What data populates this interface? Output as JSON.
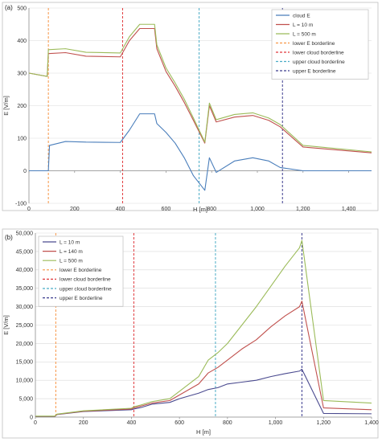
{
  "figure": {
    "panels": [
      "(a)",
      "(b)"
    ]
  },
  "chart_data": [
    {
      "type": "line",
      "panel": "(a)",
      "title": "",
      "xlabel": "H [m]",
      "ylabel": "E [V/m]",
      "xlim": [
        0,
        1500
      ],
      "ylim": [
        -100,
        500
      ],
      "xticks": [
        "0",
        "200",
        "400",
        "600",
        "800",
        "1,000",
        "1,200",
        "1,400"
      ],
      "xtick_values": [
        0,
        200,
        400,
        600,
        800,
        1000,
        1200,
        1400
      ],
      "yticks": [
        "-100",
        "0",
        "100",
        "200",
        "300",
        "400",
        "500"
      ],
      "ytick_values": [
        -100,
        0,
        100,
        200,
        300,
        400,
        500
      ],
      "grid": true,
      "legend": "top-right",
      "series": [
        {
          "name": "cloud E",
          "color": "#4a7ebb",
          "dash": "solid",
          "x": [
            0,
            85,
            90,
            160,
            250,
            400,
            440,
            485,
            550,
            560,
            600,
            640,
            680,
            720,
            770,
            790,
            820,
            900,
            980,
            1050,
            1100,
            1200,
            1500
          ],
          "y": [
            0,
            0,
            78,
            90,
            88,
            87,
            125,
            175,
            175,
            145,
            118,
            85,
            40,
            -15,
            -60,
            40,
            -5,
            30,
            40,
            30,
            10,
            0,
            0
          ]
        },
        {
          "name": "L = 10 m",
          "color": "#c0504d",
          "dash": "solid",
          "x": [
            0,
            80,
            85,
            160,
            250,
            400,
            440,
            485,
            550,
            560,
            600,
            640,
            680,
            720,
            770,
            790,
            820,
            900,
            980,
            1050,
            1100,
            1200,
            1500
          ],
          "y": [
            300,
            290,
            360,
            363,
            352,
            350,
            400,
            437,
            437,
            375,
            305,
            260,
            210,
            155,
            85,
            200,
            150,
            165,
            170,
            155,
            135,
            73,
            55
          ]
        },
        {
          "name": "L = 500 m",
          "color": "#9bbb59",
          "dash": "solid",
          "x": [
            0,
            80,
            85,
            160,
            250,
            400,
            440,
            485,
            550,
            560,
            600,
            640,
            680,
            720,
            770,
            790,
            820,
            900,
            980,
            1050,
            1100,
            1200,
            1500
          ],
          "y": [
            300,
            290,
            372,
            375,
            364,
            362,
            412,
            450,
            450,
            387,
            316,
            270,
            220,
            162,
            88,
            208,
            157,
            173,
            178,
            162,
            142,
            78,
            58
          ]
        }
      ],
      "borderlines": [
        {
          "name": "lower E borderline",
          "color": "#f79646",
          "x": 85
        },
        {
          "name": "lower cloud borderline",
          "color": "#e0383b",
          "x": 410
        },
        {
          "name": "upper cloud borderline",
          "color": "#4bacc6",
          "x": 745
        },
        {
          "name": "upper E borderline",
          "color": "#3d3d8f",
          "x": 1110
        }
      ]
    },
    {
      "type": "line",
      "panel": "(b)",
      "title": "",
      "xlabel": "H [m]",
      "ylabel": "E [V/m]",
      "xlim": [
        0,
        1400
      ],
      "ylim": [
        0,
        50000
      ],
      "xticks": [
        "0",
        "200",
        "400",
        "600",
        "800",
        "1,000",
        "1,200",
        "1,400"
      ],
      "xtick_values": [
        0,
        200,
        400,
        600,
        800,
        1000,
        1200,
        1400
      ],
      "yticks": [
        "0",
        "5,000",
        "10,000",
        "15,000",
        "20,000",
        "25,000",
        "30,000",
        "35,000",
        "40,000",
        "45,000",
        "50,000"
      ],
      "ytick_values": [
        0,
        5000,
        10000,
        15000,
        20000,
        25000,
        30000,
        35000,
        40000,
        45000,
        50000
      ],
      "grid": true,
      "legend": "top-left",
      "series": [
        {
          "name": "L = 10 m",
          "color": "#4a4a8f",
          "dash": "solid",
          "x": [
            0,
            80,
            90,
            200,
            400,
            410,
            440,
            485,
            560,
            600,
            680,
            720,
            760,
            800,
            860,
            920,
            980,
            1040,
            1100,
            1110,
            1200,
            1400
          ],
          "y": [
            150,
            150,
            700,
            1500,
            2000,
            2200,
            2600,
            3500,
            4000,
            5000,
            6500,
            7500,
            8000,
            9000,
            9500,
            10000,
            11000,
            11800,
            12500,
            13000,
            1000,
            900
          ]
        },
        {
          "name": "L = 140 m",
          "color": "#c0504d",
          "dash": "solid",
          "x": [
            0,
            80,
            90,
            200,
            400,
            410,
            440,
            485,
            560,
            600,
            680,
            720,
            760,
            800,
            860,
            920,
            980,
            1040,
            1100,
            1110,
            1200,
            1400
          ],
          "y": [
            200,
            200,
            750,
            1600,
            2200,
            2500,
            3000,
            3800,
            4500,
            6000,
            9000,
            12000,
            13500,
            15500,
            18500,
            21000,
            24500,
            27500,
            30000,
            31500,
            2500,
            2000
          ]
        },
        {
          "name": "L = 500 m",
          "color": "#9bbb59",
          "dash": "solid",
          "x": [
            0,
            80,
            90,
            200,
            400,
            410,
            440,
            485,
            560,
            600,
            680,
            720,
            760,
            800,
            860,
            920,
            980,
            1040,
            1100,
            1110,
            1200,
            1400
          ],
          "y": [
            250,
            250,
            800,
            1700,
            2400,
            2800,
            3300,
            4200,
            5000,
            7000,
            11000,
            15500,
            17500,
            20000,
            25000,
            30000,
            35500,
            41000,
            46000,
            48000,
            4500,
            3800
          ]
        }
      ],
      "borderlines": [
        {
          "name": "lower E borderline",
          "color": "#f79646",
          "x": 85
        },
        {
          "name": "lower cloud borderline",
          "color": "#e0383b",
          "x": 410
        },
        {
          "name": "upper cloud borderline",
          "color": "#4bacc6",
          "x": 750
        },
        {
          "name": "upper E borderline",
          "color": "#3d3d8f",
          "x": 1110
        }
      ]
    }
  ]
}
